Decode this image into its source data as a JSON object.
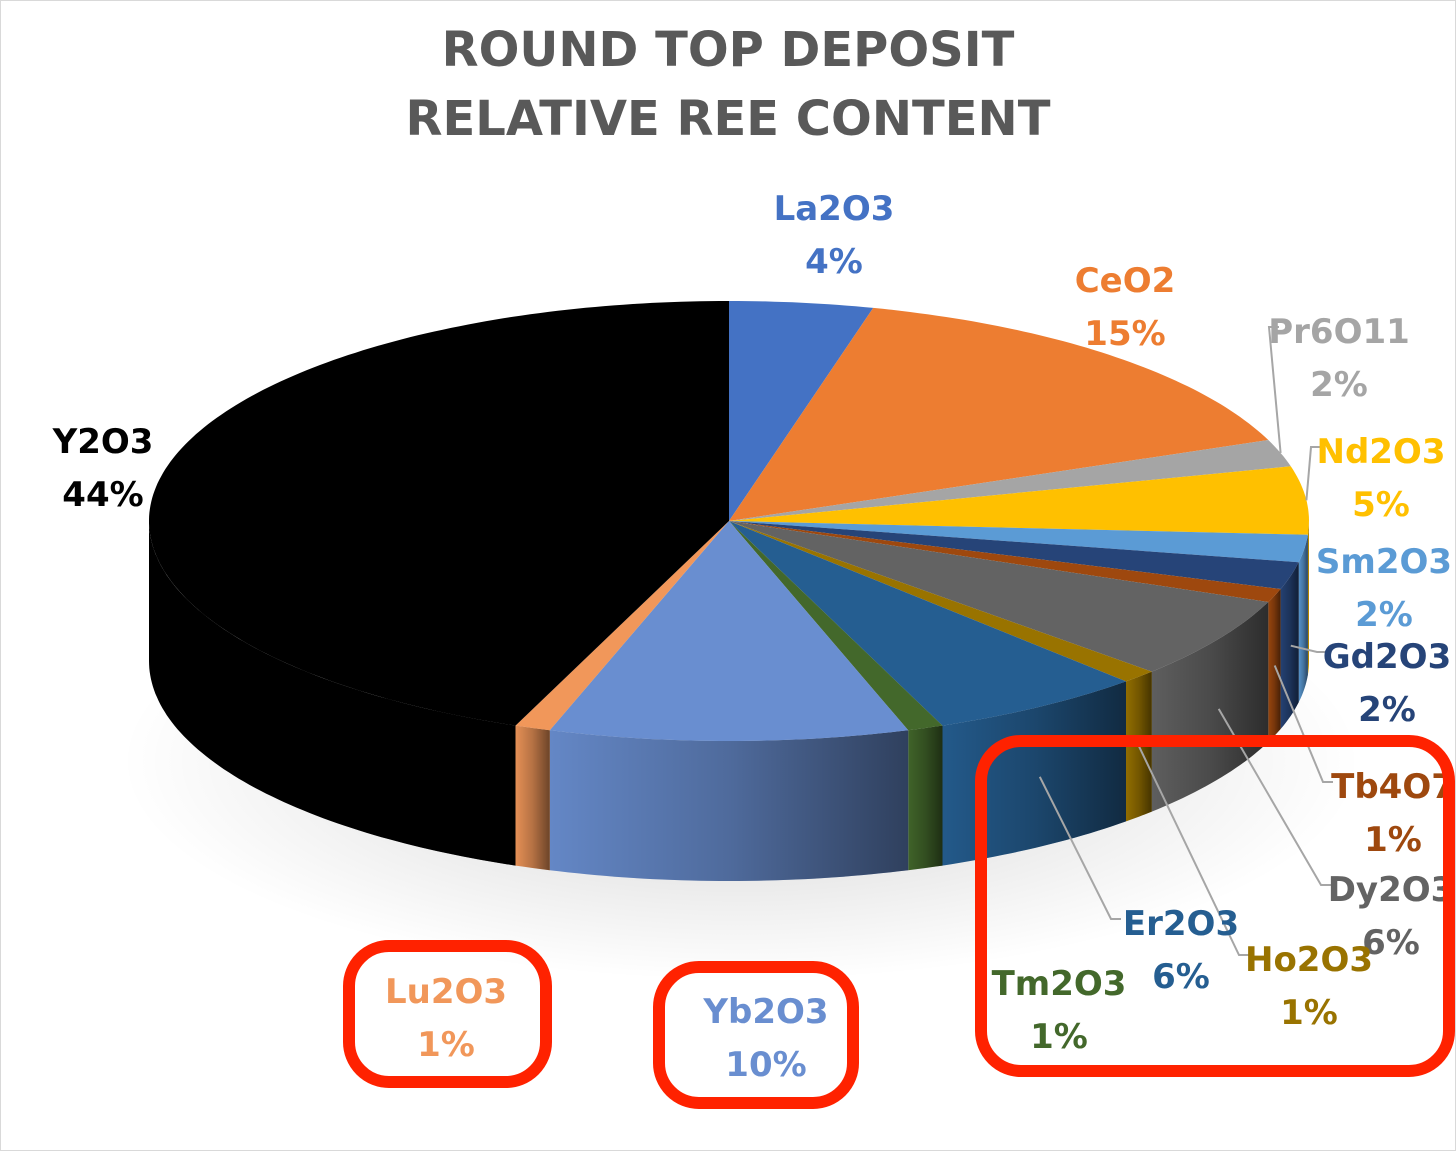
{
  "chart_data": {
    "type": "pie",
    "style": "3d-pie",
    "title_lines": [
      "ROUND TOP DEPOSIT",
      "RELATIVE REE CONTENT"
    ],
    "legend": "none",
    "slices": [
      {
        "label": "La2O3",
        "value": 4,
        "pct_label": "4%",
        "color": "#4472c4",
        "label_color": "#4472c4"
      },
      {
        "label": "CeO2",
        "value": 15,
        "pct_label": "15%",
        "color": "#ed7d31",
        "label_color": "#ed7d31"
      },
      {
        "label": "Pr6O11",
        "value": 2,
        "pct_label": "2%",
        "color": "#a5a5a5",
        "label_color": "#a5a5a5"
      },
      {
        "label": "Nd2O3",
        "value": 5,
        "pct_label": "5%",
        "color": "#ffc000",
        "label_color": "#ffc000"
      },
      {
        "label": "Sm2O3",
        "value": 2,
        "pct_label": "2%",
        "color": "#5b9bd5",
        "label_color": "#5b9bd5"
      },
      {
        "label": "Gd2O3",
        "value": 2,
        "pct_label": "2%",
        "color": "#264478",
        "label_color": "#264478"
      },
      {
        "label": "Tb4O7",
        "value": 1,
        "pct_label": "1%",
        "color": "#9e480e",
        "label_color": "#9e480e"
      },
      {
        "label": "Dy2O3",
        "value": 6,
        "pct_label": "6%",
        "color": "#636363",
        "label_color": "#636363"
      },
      {
        "label": "Ho2O3",
        "value": 1,
        "pct_label": "1%",
        "color": "#997300",
        "label_color": "#997300"
      },
      {
        "label": "Er2O3",
        "value": 6,
        "pct_label": "6%",
        "color": "#255e91",
        "label_color": "#255e91"
      },
      {
        "label": "Tm2O3",
        "value": 1,
        "pct_label": "1%",
        "color": "#43682b",
        "label_color": "#43682b"
      },
      {
        "label": "Yb2O3",
        "value": 10,
        "pct_label": "10%",
        "color": "#698ed0",
        "label_color": "#698ed0"
      },
      {
        "label": "Lu2O3",
        "value": 1,
        "pct_label": "1%",
        "color": "#f1975a",
        "label_color": "#f1975a"
      },
      {
        "label": "Y2O3",
        "value": 44,
        "pct_label": "44%",
        "color": "#000000",
        "label_color": "#000000"
      }
    ],
    "highlights": [
      {
        "encloses": [
          "Lu2O3"
        ],
        "color": "#ff2200"
      },
      {
        "encloses": [
          "Yb2O3"
        ],
        "color": "#ff2200"
      },
      {
        "encloses": [
          "Tm2O3",
          "Er2O3",
          "Ho2O3"
        ],
        "color": "#ff2200"
      }
    ]
  }
}
